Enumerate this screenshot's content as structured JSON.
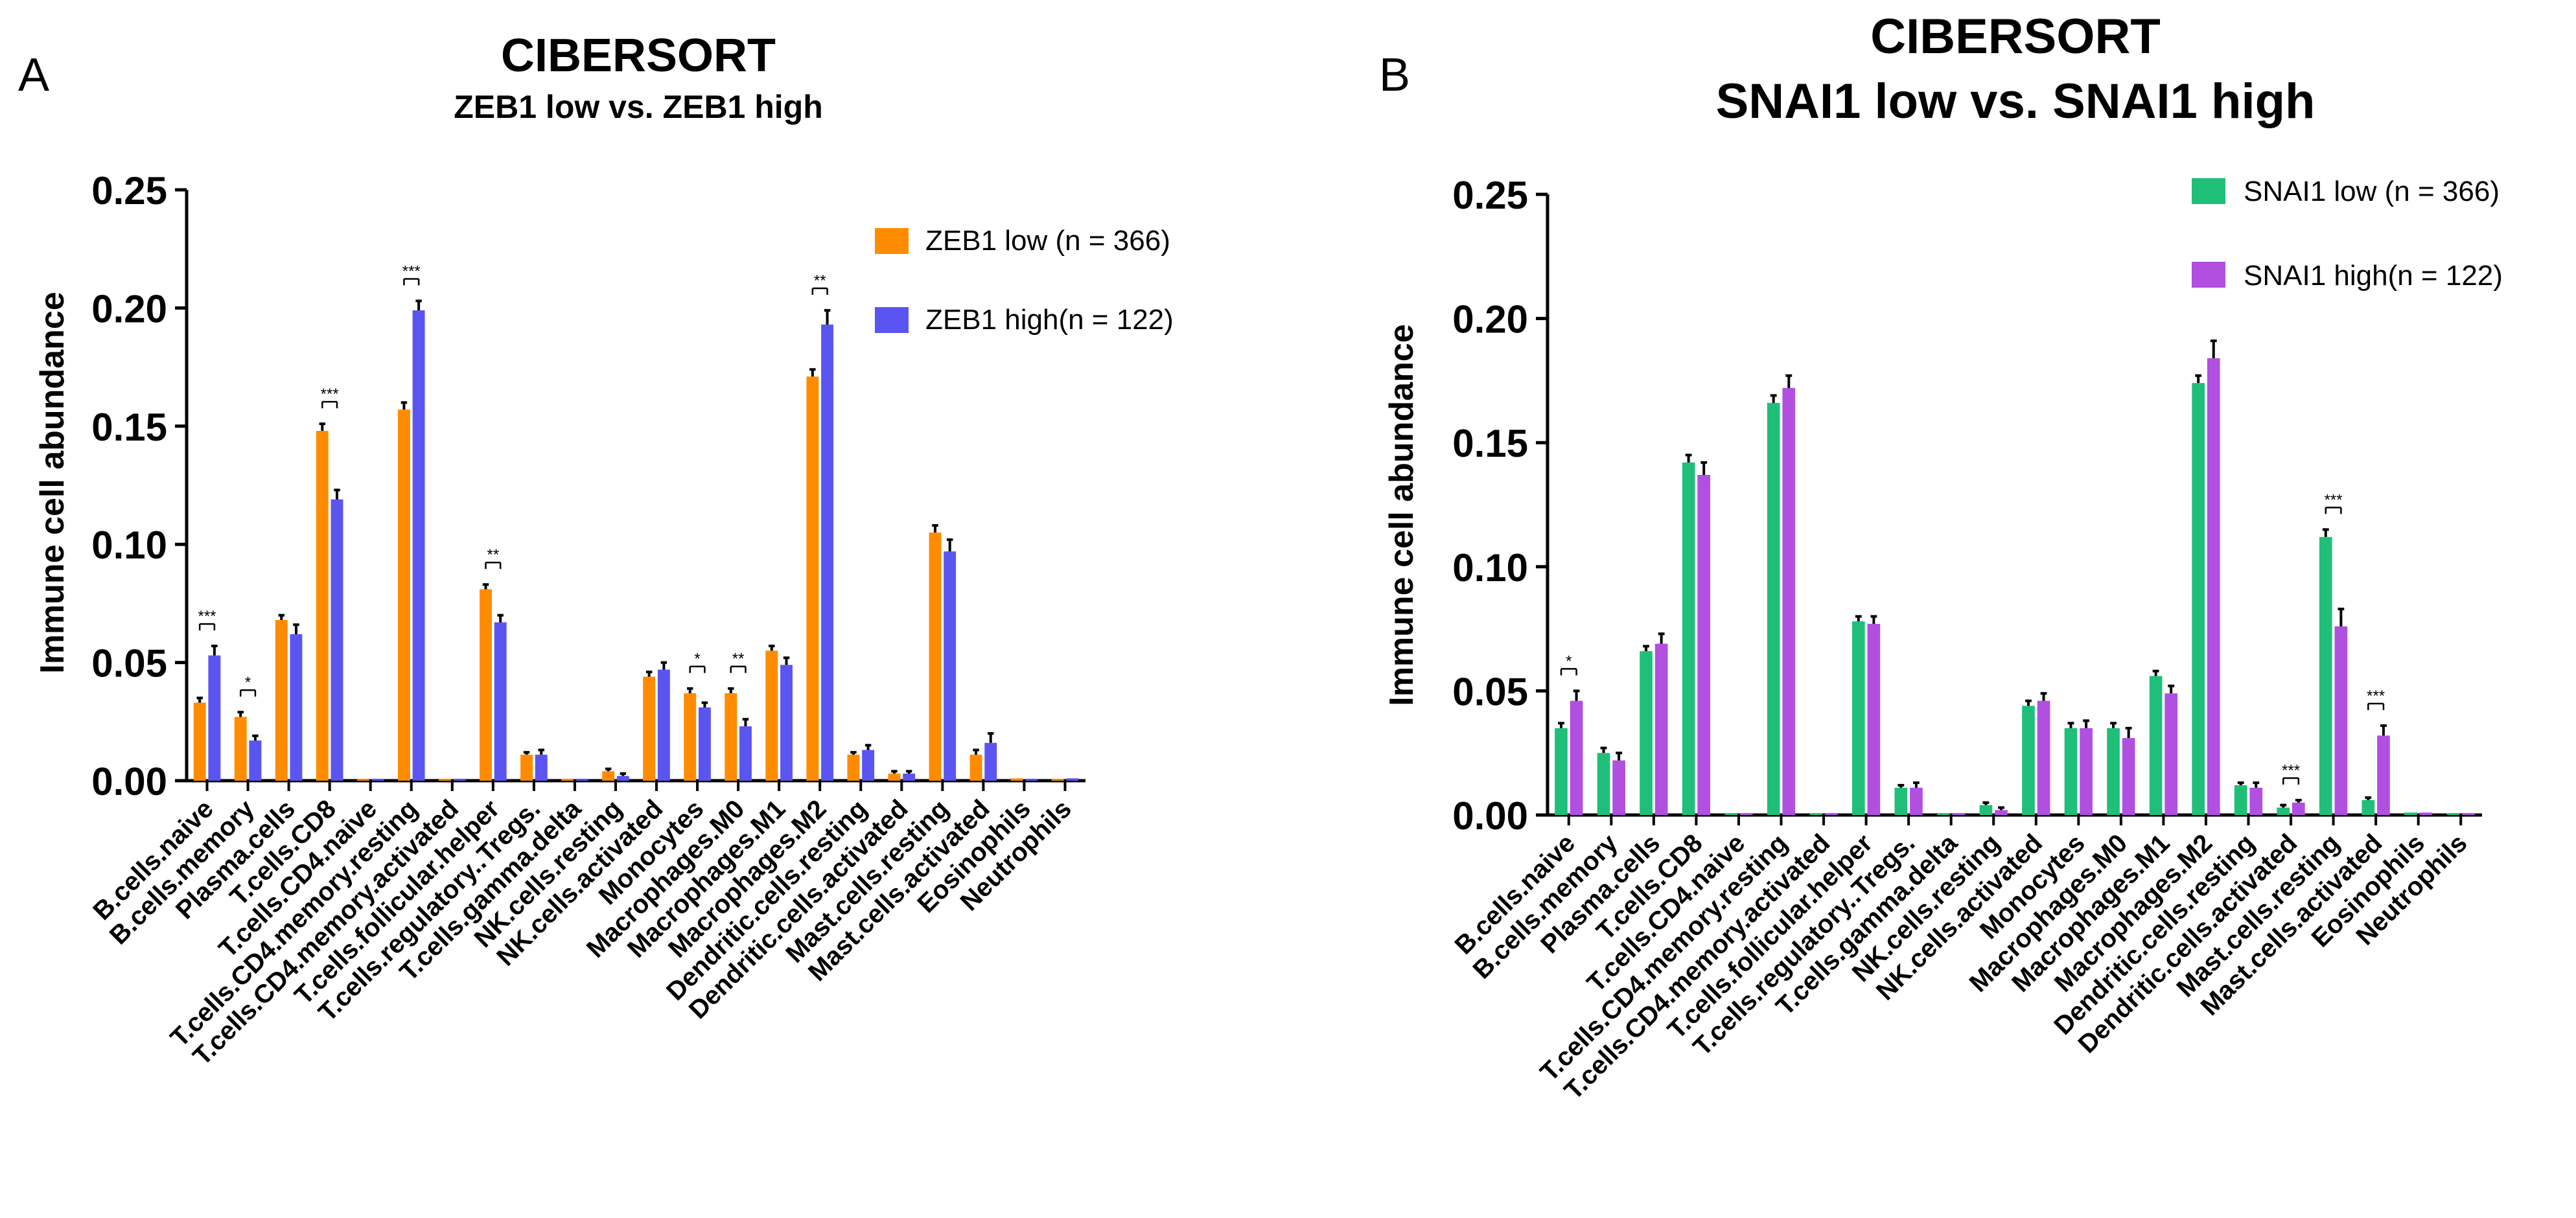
{
  "chart_data": [
    {
      "type": "bar",
      "panel_label": "A",
      "title": "CIBERSORT",
      "subtitle": "ZEB1 low vs. ZEB1 high",
      "xlabel": "",
      "ylabel": "Immune cell abundance",
      "ylim": [
        0,
        0.25
      ],
      "yticks": [
        "0.00",
        "0.05",
        "0.10",
        "0.15",
        "0.20",
        "0.25"
      ],
      "legend_position": "top-right",
      "colors": [
        "#FF8C00",
        "#5A55F0"
      ],
      "categories": [
        "B.cells.naive",
        "B.cells.memory",
        "Plasma.cells",
        "T.cells.CD8",
        "T.cells.CD4.naive",
        "T.cells.CD4.memory.resting",
        "T.cells.CD4.memory.activated",
        "T.cells.follicular.helper",
        "T.cells.regulatory..Tregs.",
        "T.cells.gamma.delta",
        "NK.cells.resting",
        "NK.cells.activated",
        "Monocytes",
        "Macrophages.M0",
        "Macrophages.M1",
        "Macrophages.M2",
        "Dendritic.cells.resting",
        "Dendritic.cells.activated",
        "Mast.cells.resting",
        "Mast.cells.activated",
        "Eosinophils",
        "Neutrophils"
      ],
      "series": [
        {
          "name": "ZEB1 low (n = 366)",
          "values": [
            0.033,
            0.027,
            0.068,
            0.148,
            0.0,
            0.157,
            0.0,
            0.081,
            0.011,
            0.0,
            0.004,
            0.044,
            0.037,
            0.037,
            0.055,
            0.171,
            0.011,
            0.003,
            0.105,
            0.011,
            0.001,
            0.0
          ],
          "errors": [
            0.002,
            0.002,
            0.002,
            0.003,
            0.0,
            0.003,
            0.0,
            0.002,
            0.001,
            0.0,
            0.001,
            0.002,
            0.002,
            0.002,
            0.002,
            0.003,
            0.001,
            0.001,
            0.003,
            0.002,
            0.0,
            0.0
          ]
        },
        {
          "name": "ZEB1 high(n = 122)",
          "values": [
            0.053,
            0.017,
            0.062,
            0.119,
            0.0,
            0.199,
            0.0,
            0.067,
            0.011,
            0.0,
            0.002,
            0.047,
            0.031,
            0.023,
            0.049,
            0.193,
            0.013,
            0.003,
            0.097,
            0.016,
            0.0,
            0.001
          ],
          "errors": [
            0.004,
            0.002,
            0.004,
            0.004,
            0.0,
            0.004,
            0.0,
            0.003,
            0.002,
            0.0,
            0.001,
            0.003,
            0.002,
            0.003,
            0.003,
            0.006,
            0.002,
            0.001,
            0.005,
            0.004,
            0.0,
            0.0
          ]
        }
      ],
      "significance": [
        {
          "category": "B.cells.naive",
          "label": "***"
        },
        {
          "category": "B.cells.memory",
          "label": "*"
        },
        {
          "category": "T.cells.CD8",
          "label": "***"
        },
        {
          "category": "T.cells.CD4.memory.resting",
          "label": "***"
        },
        {
          "category": "T.cells.follicular.helper",
          "label": "**"
        },
        {
          "category": "Monocytes",
          "label": "*"
        },
        {
          "category": "Macrophages.M0",
          "label": "**"
        },
        {
          "category": "Macrophages.M2",
          "label": "**"
        }
      ]
    },
    {
      "type": "bar",
      "panel_label": "B",
      "title": "CIBERSORT",
      "subtitle": "SNAI1 low vs. SNAI1 high",
      "xlabel": "",
      "ylabel": "Immune cell abundance",
      "ylim": [
        0,
        0.25
      ],
      "yticks": [
        "0.00",
        "0.05",
        "0.10",
        "0.15",
        "0.20",
        "0.25"
      ],
      "legend_position": "top-right",
      "colors": [
        "#1FBF7A",
        "#B04FE0"
      ],
      "categories": [
        "B.cells.naive",
        "B.cells.memory",
        "Plasma.cells",
        "T.cells.CD8",
        "T.cells.CD4.naive",
        "T.cells.CD4.memory.resting",
        "T.cells.CD4.memory.activated",
        "T.cells.follicular.helper",
        "T.cells.regulatory..Tregs.",
        "T.cells.gamma.delta",
        "NK.cells.resting",
        "NK.cells.activated",
        "Monocytes",
        "Macrophages.M0",
        "Macrophages.M1",
        "Macrophages.M2",
        "Dendritic.cells.resting",
        "Dendritic.cells.activated",
        "Mast.cells.resting",
        "Mast.cells.activated",
        "Eosinophils",
        "Neutrophils"
      ],
      "series": [
        {
          "name": "SNAI1 low (n = 366)",
          "values": [
            0.035,
            0.025,
            0.066,
            0.142,
            0.0,
            0.166,
            0.0,
            0.078,
            0.011,
            0.0,
            0.004,
            0.044,
            0.035,
            0.035,
            0.056,
            0.174,
            0.012,
            0.003,
            0.112,
            0.006,
            0.001,
            0.0
          ],
          "errors": [
            0.002,
            0.002,
            0.002,
            0.003,
            0.0,
            0.003,
            0.0,
            0.002,
            0.001,
            0.0,
            0.001,
            0.002,
            0.002,
            0.002,
            0.002,
            0.003,
            0.001,
            0.001,
            0.003,
            0.001,
            0.0,
            0.0
          ]
        },
        {
          "name": "SNAI1 high(n = 122)",
          "values": [
            0.046,
            0.022,
            0.069,
            0.137,
            0.0,
            0.172,
            0.0,
            0.077,
            0.011,
            0.0,
            0.002,
            0.046,
            0.035,
            0.031,
            0.049,
            0.184,
            0.011,
            0.005,
            0.076,
            0.032,
            0.001,
            0.0
          ],
          "errors": [
            0.004,
            0.003,
            0.004,
            0.005,
            0.0,
            0.005,
            0.0,
            0.003,
            0.002,
            0.0,
            0.001,
            0.003,
            0.003,
            0.004,
            0.003,
            0.007,
            0.002,
            0.001,
            0.007,
            0.004,
            0.0,
            0.0
          ]
        }
      ],
      "significance": [
        {
          "category": "B.cells.naive",
          "label": "*"
        },
        {
          "category": "Dendritic.cells.activated",
          "label": "***"
        },
        {
          "category": "Mast.cells.resting",
          "label": "***"
        },
        {
          "category": "Mast.cells.activated",
          "label": "***"
        }
      ]
    }
  ]
}
